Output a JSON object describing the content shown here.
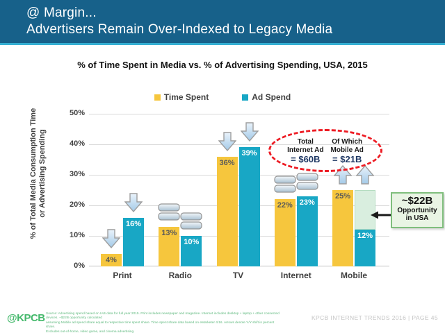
{
  "header": {
    "line1": "@ Margin...",
    "line2": "Advertisers Remain Over-Indexed to Legacy Media"
  },
  "chart_data": {
    "type": "bar",
    "title": "% of Time Spent in Media vs. % of Advertising Spending, USA, 2015",
    "ylabel_line1": "% of Total Media Consumption Time",
    "ylabel_line2": "or Advertising Spending",
    "categories": [
      "Print",
      "Radio",
      "TV",
      "Internet",
      "Mobile"
    ],
    "series": [
      {
        "name": "Time Spent",
        "color": "#F6C63D",
        "label_color": "#595959",
        "values": [
          4,
          13,
          36,
          22,
          25
        ]
      },
      {
        "name": "Ad Spend",
        "color": "#18A7C5",
        "label_color": "#FFFFFF",
        "values": [
          16,
          10,
          39,
          23,
          12
        ]
      }
    ],
    "yoy_trend_icons": [
      "down",
      "flat",
      "down",
      "flat",
      "up"
    ],
    "yticks": [
      "0%",
      "10%",
      "20%",
      "30%",
      "40%",
      "50%"
    ],
    "ylim": [
      0,
      50
    ],
    "grid": true,
    "legend_position": "top",
    "opportunity_overlay": {
      "category": "Mobile",
      "series": "Ad Spend",
      "from_pct": 12,
      "to_pct": 25
    }
  },
  "annotations": {
    "internet_ad_callout": {
      "col1_line1": "Total",
      "col1_line2": "Internet Ad",
      "col1_value": "= $60B",
      "col2_line1": "Of Which",
      "col2_line2": "Mobile Ad",
      "col2_value": "= $21B"
    },
    "opportunity_box": {
      "value": "~$22B",
      "line2": "Opportunity",
      "line3": "in USA"
    }
  },
  "footer": {
    "logo": "@KPCB",
    "source_line1": "Source: Advertising spend based on IAB data for full year 2015. Print includes newspaper and magazine. Internet includes desktop + laptop + other connected devices. ~$22B opportunity calculated",
    "source_line2": "assuming Mobile ad spend share equal to respective time spent share. Time spent share data based on eMarketer 4/16. Arrows denote Y/Y shift in percent share.",
    "source_line3": "Excludes out-of-home, video game, and cinema advertising.",
    "right_text": "KPCB INTERNET TRENDS 2016   |   PAGE 45"
  },
  "colors": {
    "header_bg": "#17618A",
    "accent_line": "#35AFD2",
    "time_spent": "#F6C63D",
    "ad_spend": "#18A7C5",
    "callout_red": "#ED1C24",
    "value_navy": "#1F3864",
    "opportunity_mint": "#D9EEDF",
    "box_green_border": "#7FBE7C",
    "kpcb_green": "#45B96C"
  }
}
